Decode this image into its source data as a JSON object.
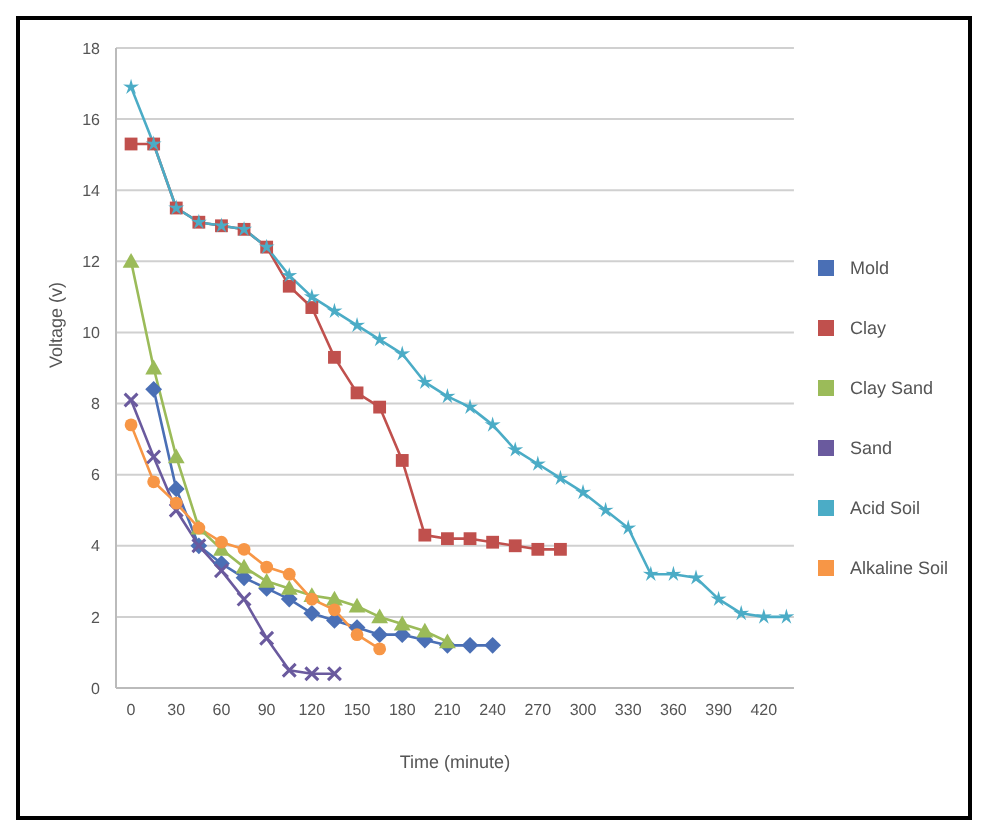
{
  "chart_data": {
    "type": "line",
    "xlabel": "Time (minute)",
    "ylabel": "Voltage (v)",
    "xlim": [
      -10,
      440
    ],
    "xticks": [
      0,
      30,
      60,
      90,
      120,
      150,
      180,
      210,
      240,
      270,
      300,
      330,
      360,
      390,
      420
    ],
    "ylim": [
      0,
      18
    ],
    "yticks": [
      0,
      2,
      4,
      6,
      8,
      10,
      12,
      14,
      16,
      18
    ],
    "grid": "y",
    "legend": "right",
    "series": [
      {
        "name": "Mold",
        "color": "#4a6fb5",
        "marker": "diamond",
        "x": [
          15,
          30,
          45,
          60,
          75,
          90,
          105,
          120,
          135,
          150,
          165,
          180,
          195,
          210,
          225,
          240
        ],
        "values": [
          8.4,
          5.6,
          4.0,
          3.5,
          3.1,
          2.8,
          2.5,
          2.1,
          1.9,
          1.7,
          1.5,
          1.5,
          1.35,
          1.2,
          1.2,
          1.2
        ]
      },
      {
        "name": "Clay",
        "color": "#c0504d",
        "marker": "square",
        "x": [
          0,
          15,
          30,
          45,
          60,
          75,
          90,
          105,
          120,
          135,
          150,
          165,
          180,
          195,
          210,
          225,
          240,
          255,
          270,
          285
        ],
        "values": [
          15.3,
          15.3,
          13.5,
          13.1,
          13.0,
          12.9,
          12.4,
          11.3,
          10.7,
          9.3,
          8.3,
          7.9,
          6.4,
          4.3,
          4.2,
          4.2,
          4.1,
          4.0,
          3.9,
          3.9
        ]
      },
      {
        "name": "Clay Sand",
        "color": "#9bbb59",
        "marker": "triangle",
        "x": [
          0,
          15,
          30,
          45,
          60,
          75,
          90,
          105,
          120,
          135,
          150,
          165,
          180,
          195,
          210
        ],
        "values": [
          12,
          9.0,
          6.5,
          4.5,
          3.9,
          3.4,
          3.0,
          2.8,
          2.6,
          2.5,
          2.3,
          2.0,
          1.8,
          1.6,
          1.3
        ]
      },
      {
        "name": "Sand",
        "color": "#6a5a9e",
        "marker": "cross",
        "x": [
          0,
          15,
          30,
          45,
          60,
          75,
          90,
          105,
          120,
          135
        ],
        "values": [
          8.1,
          6.5,
          5.0,
          4.0,
          3.3,
          2.5,
          1.4,
          0.5,
          0.4,
          0.4
        ]
      },
      {
        "name": "Acid Soil",
        "color": "#4bacc6",
        "marker": "star",
        "x": [
          0,
          15,
          30,
          45,
          60,
          75,
          90,
          105,
          120,
          135,
          150,
          165,
          180,
          195,
          210,
          225,
          240,
          255,
          270,
          285,
          300,
          315,
          330,
          345,
          360,
          375,
          390,
          405,
          420,
          435
        ],
        "values": [
          16.9,
          15.3,
          13.5,
          13.1,
          13.0,
          12.9,
          12.4,
          11.6,
          11.0,
          10.6,
          10.2,
          9.8,
          9.4,
          8.6,
          8.2,
          7.9,
          7.4,
          6.7,
          6.3,
          5.9,
          5.5,
          5.0,
          4.5,
          3.2,
          3.2,
          3.1,
          2.5,
          2.1,
          2.0,
          2.0
        ]
      },
      {
        "name": "Alkaline Soil",
        "color": "#f79646",
        "marker": "circle",
        "x": [
          0,
          15,
          30,
          45,
          60,
          75,
          90,
          105,
          120,
          135,
          150,
          165
        ],
        "values": [
          7.4,
          5.8,
          5.2,
          4.5,
          4.1,
          3.9,
          3.4,
          3.2,
          2.5,
          2.2,
          1.5,
          1.1
        ]
      }
    ]
  }
}
